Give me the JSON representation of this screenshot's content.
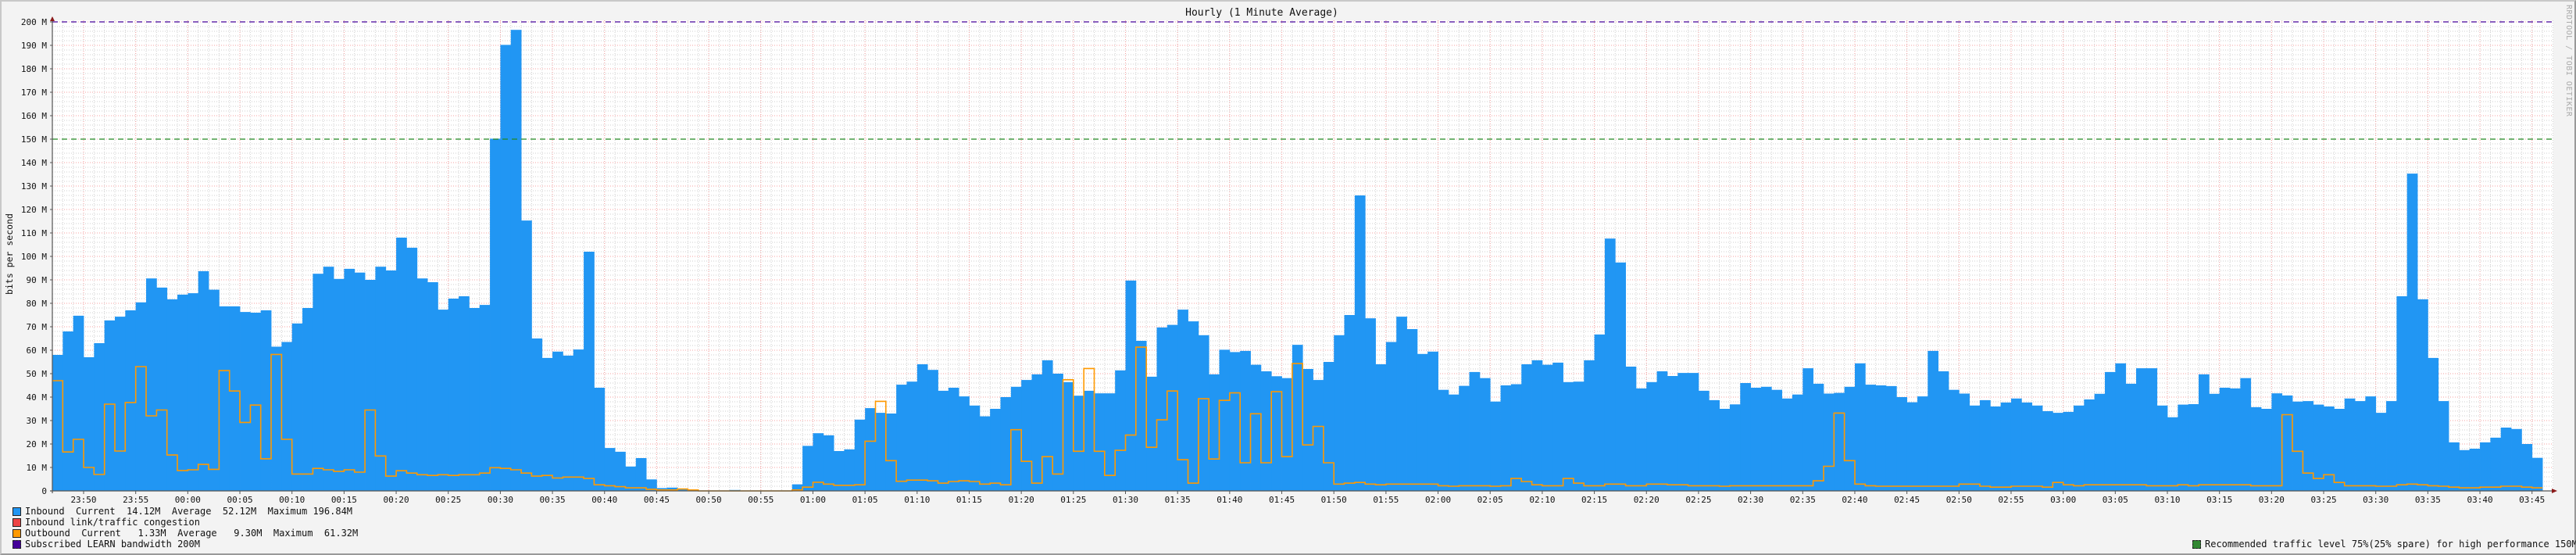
{
  "chart_data": {
    "type": "area",
    "title": "Hourly (1 Minute Average)",
    "ylabel": "bits per second",
    "xlabel": "",
    "x_range": [
      "23:47",
      "03:46"
    ],
    "ylim": [
      0,
      200
    ],
    "y_unit": "M",
    "y_ticks": [
      "0",
      "10 M",
      "20 M",
      "30 M",
      "40 M",
      "50 M",
      "60 M",
      "70 M",
      "80 M",
      "90 M",
      "100 M",
      "110 M",
      "120 M",
      "130 M",
      "140 M",
      "150 M",
      "160 M",
      "170 M",
      "180 M",
      "190 M",
      "200 M"
    ],
    "x_ticks": [
      "23:50",
      "23:55",
      "00:00",
      "00:05",
      "00:10",
      "00:15",
      "00:20",
      "00:25",
      "00:30",
      "00:35",
      "00:40",
      "00:45",
      "00:50",
      "00:55",
      "01:00",
      "01:05",
      "01:10",
      "01:15",
      "01:20",
      "01:25",
      "01:30",
      "01:35",
      "01:40",
      "01:45",
      "01:50",
      "01:55",
      "02:00",
      "02:05",
      "02:10",
      "02:15",
      "02:20",
      "02:25",
      "02:30",
      "02:35",
      "02:40",
      "02:45",
      "02:50",
      "02:55",
      "03:00",
      "03:05",
      "03:10",
      "03:15",
      "03:20",
      "03:25",
      "03:30",
      "03:35",
      "03:40",
      "03:45"
    ],
    "grid": true,
    "legend_placement": "bottom",
    "series": [
      {
        "name": "Inbound",
        "style": "filled-steps",
        "color": "#2196F3",
        "values": [
          58,
          68,
          74.7,
          57,
          63,
          72.7,
          74.3,
          77,
          80.4,
          90.6,
          86.7,
          81.7,
          83.7,
          84.3,
          93.7,
          85.8,
          78.7,
          78.7,
          76.3,
          76,
          77,
          61.5,
          63.5,
          71.4,
          78,
          92.6,
          95.6,
          90.4,
          94.7,
          93.1,
          90,
          95.6,
          94,
          108,
          103.7,
          90.6,
          89,
          77.3,
          82,
          83,
          78,
          79.3,
          150.2,
          190.2,
          196.6,
          115.3,
          65,
          56.7,
          59.4,
          57.7,
          60.3,
          102,
          44,
          18.3,
          16.7,
          10.4,
          14,
          4.9,
          1.2,
          1.4,
          1,
          0.4,
          0,
          0,
          0,
          0.4,
          0,
          0,
          0,
          0,
          0,
          2.8,
          19.2,
          24.6,
          23.7,
          17,
          17.7,
          30.4,
          35.3,
          33.3,
          33,
          45.3,
          46.6,
          54,
          51.6,
          42.7,
          44,
          40.3,
          36.4,
          31.8,
          35,
          40,
          44.4,
          47.3,
          49.7,
          55.7,
          50,
          46.4,
          40.6,
          42.7,
          41.6,
          41.6,
          51.4,
          89.7,
          64,
          48.7,
          69.7,
          70.8,
          77.3,
          72.3,
          66.4,
          49.7,
          60.2,
          59.2,
          59.7,
          53.8,
          51,
          48.9,
          48.1,
          62.3,
          52,
          47.3,
          55,
          66.4,
          75,
          126,
          73.6,
          54,
          63.5,
          74.3,
          69,
          58.4,
          59.4,
          43.1,
          41.1,
          44.8,
          50.7,
          48.1,
          38.1,
          45,
          45.5,
          54,
          55.7,
          53.8,
          54.7,
          46.4,
          46.6,
          55.7,
          66.7,
          107.6,
          97.4,
          53,
          43.7,
          46.4,
          51,
          49,
          50.3,
          50.3,
          42.7,
          38.7,
          35,
          36.9,
          46,
          44,
          44.4,
          43.1,
          39.4,
          41.1,
          52.3,
          45.7,
          41.5,
          41.8,
          44.4,
          54.4,
          45.3,
          45,
          44.7,
          40,
          37.8,
          40.3,
          59.7,
          51,
          43.1,
          41.5,
          36.4,
          38.7,
          36,
          37.7,
          39.4,
          37.7,
          36.4,
          34,
          33.3,
          33.7,
          36.4,
          39,
          41.4,
          50.7,
          54.4,
          45.7,
          52.3,
          52.3,
          36.4,
          31.4,
          36.8,
          37,
          49.7,
          41.4,
          44,
          43.7,
          48.1,
          35.7,
          35,
          41.6,
          40.7,
          38.1,
          38.3,
          36.8,
          36,
          35,
          39.4,
          38.3,
          40.3,
          33.3,
          38.3,
          83,
          135.3,
          81.7,
          56.7,
          38.3,
          20.7,
          17.4,
          18,
          20.7,
          22.7,
          27,
          26.4,
          20,
          14.1
        ]
      },
      {
        "name": "Outbound",
        "style": "step-line",
        "color": "#FF9900",
        "values": [
          47,
          16.6,
          22,
          10,
          7,
          37,
          17,
          37.7,
          53,
          32,
          34.5,
          15.3,
          8.7,
          9,
          11.3,
          9.2,
          51.3,
          42.6,
          29.2,
          36.6,
          13.7,
          58.2,
          22,
          7.2,
          7.2,
          9.6,
          9,
          8.3,
          9,
          8,
          34.5,
          14.9,
          6.3,
          8.6,
          7.6,
          6.9,
          6.6,
          6.9,
          6.6,
          6.9,
          6.9,
          7.6,
          9.9,
          9.6,
          9,
          7.6,
          6.3,
          6.6,
          5.5,
          5.9,
          5.9,
          5.3,
          2.6,
          2.2,
          1.8,
          1.3,
          1.3,
          0.7,
          0.4,
          0.4,
          0.8,
          0.4,
          0,
          0,
          0,
          0,
          0,
          0,
          0,
          0,
          0,
          0.4,
          1.6,
          3.7,
          2.9,
          2.4,
          2.4,
          2.6,
          21.2,
          38.2,
          12.9,
          4.1,
          4.6,
          4.6,
          4.3,
          3.3,
          4,
          4.3,
          4,
          2.9,
          3.3,
          2.6,
          26.1,
          12.6,
          3.3,
          14.6,
          7.2,
          47.4,
          16.9,
          52.2,
          16.9,
          6.6,
          17.3,
          23.8,
          61.3,
          18.6,
          30.3,
          42.6,
          13.3,
          3.3,
          39.3,
          13.6,
          38.6,
          41.8,
          12,
          32.9,
          12,
          42.3,
          14.6,
          54.3,
          19.6,
          27.5,
          12,
          2.9,
          3.3,
          3.6,
          2.9,
          2.6,
          2.9,
          2.9,
          2.9,
          2.9,
          2.9,
          2.2,
          2,
          2.2,
          2.2,
          2.2,
          2,
          2.2,
          5.3,
          4,
          2.6,
          2.2,
          2.2,
          5.3,
          3.3,
          2.2,
          2.2,
          2.9,
          2.9,
          2.2,
          2.2,
          2.9,
          2.9,
          2.6,
          2.6,
          2.2,
          2.2,
          2.2,
          2,
          2.2,
          2.2,
          2.2,
          2.2,
          2.2,
          2.2,
          2.2,
          2.2,
          4.3,
          10.5,
          33.2,
          12.9,
          2.9,
          2.2,
          2,
          2,
          2,
          2,
          2,
          2,
          2,
          2,
          2.9,
          2.9,
          2,
          1.6,
          1.6,
          2,
          2,
          2,
          1.6,
          3.6,
          2.6,
          2.2,
          2.6,
          2.6,
          2.6,
          2.6,
          2.6,
          2.6,
          2.2,
          2.2,
          2.2,
          2.6,
          2.2,
          2.6,
          2.6,
          2.6,
          2.6,
          2.6,
          2.2,
          2.2,
          2.2,
          32.5,
          16.9,
          7.6,
          5.3,
          6.9,
          3.6,
          2.2,
          2.2,
          2.2,
          2,
          2,
          2.6,
          2.9,
          2.6,
          2.2,
          2,
          1.6,
          1.3,
          1.3,
          1.6,
          1.6,
          2,
          2,
          1.6,
          1.3
        ]
      }
    ],
    "reference_lines": [
      {
        "name": "Subscribed LEARN bandwidth 200M",
        "value": 200,
        "color": "#440099",
        "style": "dashed"
      },
      {
        "name": "Recommended traffic level 75%(25% spare) for high performance 150M",
        "value": 150,
        "color": "#228822",
        "style": "dashed"
      }
    ]
  },
  "legend": {
    "inbound": {
      "text": "Inbound  Current  14.12M  Average  52.12M  Maximum 196.84M",
      "color": "#2196F3"
    },
    "congestion": {
      "text": "Inbound link/traffic congestion",
      "color": "#EE4444"
    },
    "outbound": {
      "text": "Outbound  Current   1.33M  Average   9.30M  Maximum  61.32M",
      "color": "#FF9900"
    },
    "subscribed": {
      "text": "Subscribed LEARN bandwidth 200M",
      "color": "#440099"
    },
    "recommended": {
      "text": "Recommended traffic level 75%(25% spare) for high performance 150M",
      "color": "#338833"
    }
  },
  "watermark": "RRDTOOL / TOBI OETIKER"
}
